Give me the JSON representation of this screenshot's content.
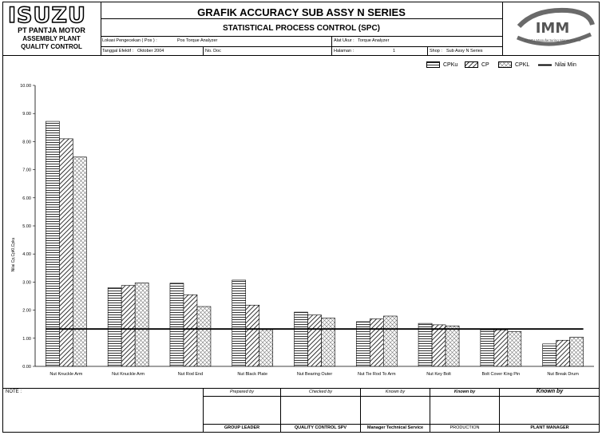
{
  "company": {
    "logo": "ISUZU",
    "name": "PT PANTJA MOTOR",
    "plant": "ASSEMBLY PLANT",
    "dept": "QUALITY CONTROL"
  },
  "title": {
    "main": "GRAFIK ACCURACY SUB ASSY N SERIES",
    "sub": "STATISTICAL PROCESS CONTROL (SPC)"
  },
  "imm_logo": {
    "text": "IMM",
    "tagline": "ISUZU Manufacturing Management"
  },
  "info": {
    "lokasi_label": "Lokasi Pengecekan ( Pos ) :",
    "lokasi_value": "Pos Torque Analyzer",
    "alat_label": "Alat Ukur :",
    "alat_value": "Torque Analyzer",
    "tanggal_label": "Tanggal Efektif :",
    "tanggal_value": "Oktober 2004",
    "nodoc_label": "No. Doc",
    "halaman_label": "Halaman :",
    "halaman_value": "1",
    "shop_label": "Shop :",
    "shop_value": "Sub Assy N Series"
  },
  "legend": {
    "cpku": "CPKu",
    "cp": "CP",
    "cpkl": "CPKL",
    "nilai_min": "Nilai Min"
  },
  "chart_data": {
    "type": "bar",
    "ylabel": "Nilai Cp,CpKl,Cpku",
    "ylim": [
      0,
      10
    ],
    "yticks": [
      "0.00",
      "1.00",
      "2.00",
      "3.00",
      "4.00",
      "5.00",
      "6.00",
      "7.00",
      "8.00",
      "9.00",
      "10.00"
    ],
    "categories": [
      "Nut Knuckle Arm",
      "Nut Knuckle Arm",
      "Nut Rod End",
      "Nut Black Plate",
      "Nut Bearing Outer",
      "Nut Tie Rod To Arm",
      "Nut Key Bolt",
      "Bolt Cover King Pin",
      "Nut Break Drum"
    ],
    "series": [
      {
        "name": "CPKu",
        "values": [
          8.72,
          2.8,
          2.96,
          3.07,
          1.93,
          1.59,
          1.53,
          1.3,
          0.8
        ]
      },
      {
        "name": "CP",
        "values": [
          8.1,
          2.88,
          2.55,
          2.18,
          1.83,
          1.69,
          1.48,
          1.3,
          0.93
        ]
      },
      {
        "name": "CPKL",
        "values": [
          7.45,
          2.97,
          2.13,
          1.31,
          1.72,
          1.79,
          1.44,
          1.24,
          1.04
        ]
      }
    ],
    "nilai_min": 1.33,
    "grid": false,
    "legend_position": "top-right"
  },
  "footer": {
    "note_label": "NOTE :",
    "prepared_label": "Prepared by",
    "checked_label": "Checked by",
    "known_label": "Known by",
    "known_label2": "Known by",
    "known_label3": "Known by",
    "roles": [
      "GROUP LEADER",
      "QUALITY CONTROL SPV",
      "Manager Technical Service",
      "PRODUCTION",
      "PLANT MANAGER"
    ]
  }
}
